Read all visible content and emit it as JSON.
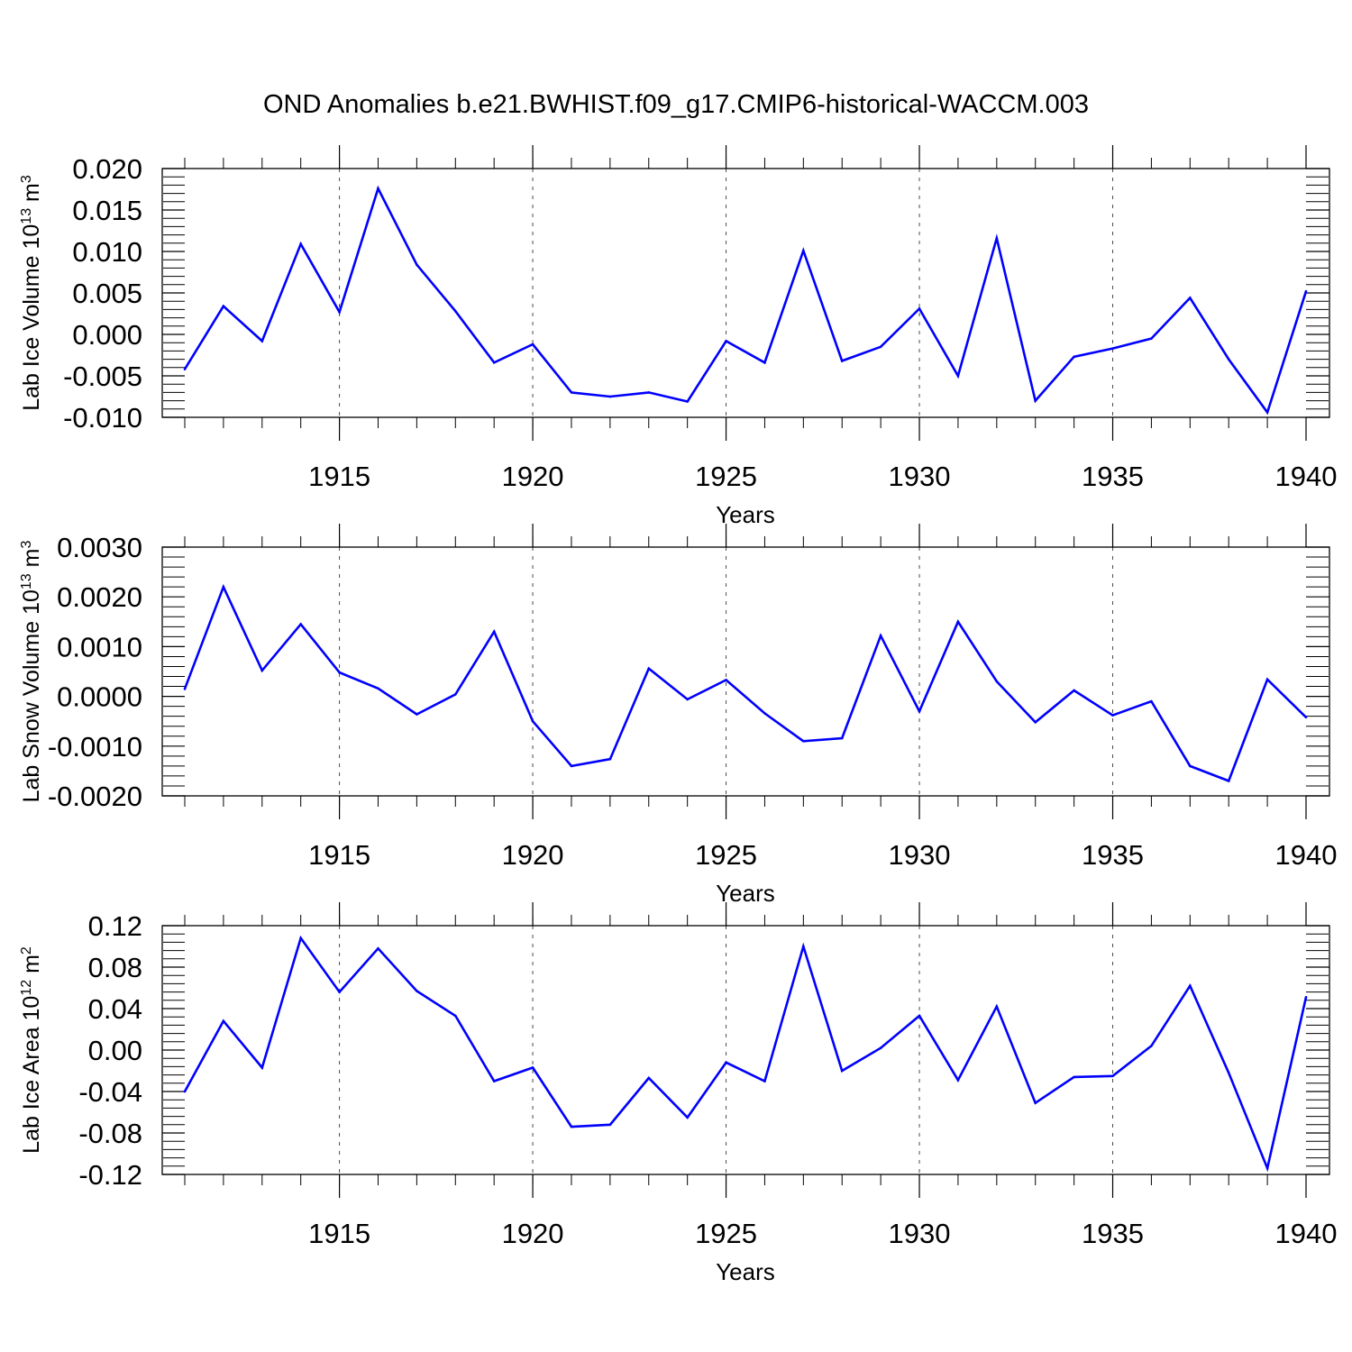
{
  "title": "OND Anomalies b.e21.BWHIST.f09_g17.CMIP6-historical-WACCM.003",
  "line_color": "#0000ff",
  "chart_data": [
    {
      "type": "line",
      "ylabel_main": "Lab Ice Volume 10",
      "ylabel_sup": "13",
      "ylabel_unit": " m",
      "ylabel_unit_sup": "3",
      "xlabel": "Years",
      "xlim": [
        1911,
        1940
      ],
      "ylim": [
        -0.01,
        0.02
      ],
      "yticks": [
        -0.01,
        -0.005,
        0.0,
        0.005,
        0.01,
        0.015,
        0.02
      ],
      "ytick_labels": [
        "-0.010",
        "-0.005",
        "0.000",
        "0.005",
        "0.010",
        "0.015",
        "0.020"
      ],
      "xticks": [
        1915,
        1920,
        1925,
        1930,
        1935,
        1940
      ],
      "xtick_labels": [
        "1915",
        "1920",
        "1925",
        "1930",
        "1935",
        "1940"
      ],
      "x": [
        1911,
        1912,
        1913,
        1914,
        1915,
        1916,
        1917,
        1918,
        1919,
        1920,
        1921,
        1922,
        1923,
        1924,
        1925,
        1926,
        1927,
        1928,
        1929,
        1930,
        1931,
        1932,
        1933,
        1934,
        1935,
        1936,
        1937,
        1938,
        1939,
        1940
      ],
      "values": [
        -0.0042,
        0.0034,
        -0.0008,
        0.0109,
        0.0027,
        0.0176,
        0.0084,
        0.0028,
        -0.0034,
        -0.0012,
        -0.007,
        -0.0075,
        -0.007,
        -0.0081,
        -0.0008,
        -0.0034,
        0.0101,
        -0.0032,
        -0.0015,
        0.0031,
        -0.005,
        0.0116,
        -0.008,
        -0.0027,
        -0.0017,
        -0.0005,
        0.0044,
        -0.003,
        -0.0094,
        0.0052
      ]
    },
    {
      "type": "line",
      "ylabel_main": "Lab Snow Volume 10",
      "ylabel_sup": "13",
      "ylabel_unit": " m",
      "ylabel_unit_sup": "3",
      "xlabel": "Years",
      "xlim": [
        1911,
        1940
      ],
      "ylim": [
        -0.002,
        0.003
      ],
      "yticks": [
        -0.002,
        -0.001,
        0.0,
        0.001,
        0.002,
        0.003
      ],
      "ytick_labels": [
        "-0.0020",
        "-0.0010",
        "0.0000",
        "0.0010",
        "0.0020",
        "0.0030"
      ],
      "xticks": [
        1915,
        1920,
        1925,
        1930,
        1935,
        1940
      ],
      "xtick_labels": [
        "1915",
        "1920",
        "1925",
        "1930",
        "1935",
        "1940"
      ],
      "x": [
        1911,
        1912,
        1913,
        1914,
        1915,
        1916,
        1917,
        1918,
        1919,
        1920,
        1921,
        1922,
        1923,
        1924,
        1925,
        1926,
        1927,
        1928,
        1929,
        1930,
        1931,
        1932,
        1933,
        1934,
        1935,
        1936,
        1937,
        1938,
        1939,
        1940
      ],
      "values": [
        0.00015,
        0.0022,
        0.00052,
        0.00145,
        0.00048,
        0.00016,
        -0.00036,
        4e-05,
        0.0013,
        -0.0005,
        -0.0014,
        -0.00126,
        0.00056,
        -6e-05,
        0.00033,
        -0.00034,
        -0.0009,
        -0.00084,
        0.00122,
        -0.0003,
        0.0015,
        0.0003,
        -0.00052,
        0.00012,
        -0.00038,
        -0.0001,
        -0.0014,
        -0.0017,
        0.00034,
        -0.00042
      ]
    },
    {
      "type": "line",
      "ylabel_main": "Lab Ice Area 10",
      "ylabel_sup": "12",
      "ylabel_unit": " m",
      "ylabel_unit_sup": "2",
      "xlabel": "Years",
      "xlim": [
        1911,
        1940
      ],
      "ylim": [
        -0.12,
        0.12
      ],
      "yticks": [
        -0.12,
        -0.08,
        -0.04,
        0.0,
        0.04,
        0.08,
        0.12
      ],
      "ytick_labels": [
        "-0.12",
        "-0.08",
        "-0.04",
        "0.00",
        "0.04",
        "0.08",
        "0.12"
      ],
      "xticks": [
        1915,
        1920,
        1925,
        1930,
        1935,
        1940
      ],
      "xtick_labels": [
        "1915",
        "1920",
        "1925",
        "1930",
        "1935",
        "1940"
      ],
      "x": [
        1911,
        1912,
        1913,
        1914,
        1915,
        1916,
        1917,
        1918,
        1919,
        1920,
        1921,
        1922,
        1923,
        1924,
        1925,
        1926,
        1927,
        1928,
        1929,
        1930,
        1931,
        1932,
        1933,
        1934,
        1935,
        1936,
        1937,
        1938,
        1939,
        1940
      ],
      "values": [
        -0.04,
        0.028,
        -0.017,
        0.108,
        0.056,
        0.098,
        0.057,
        0.033,
        -0.03,
        -0.017,
        -0.074,
        -0.072,
        -0.027,
        -0.065,
        -0.012,
        -0.03,
        0.1,
        -0.02,
        0.002,
        0.033,
        -0.029,
        0.042,
        -0.051,
        -0.026,
        -0.025,
        0.004,
        0.062,
        -0.022,
        -0.114,
        0.051
      ]
    }
  ]
}
